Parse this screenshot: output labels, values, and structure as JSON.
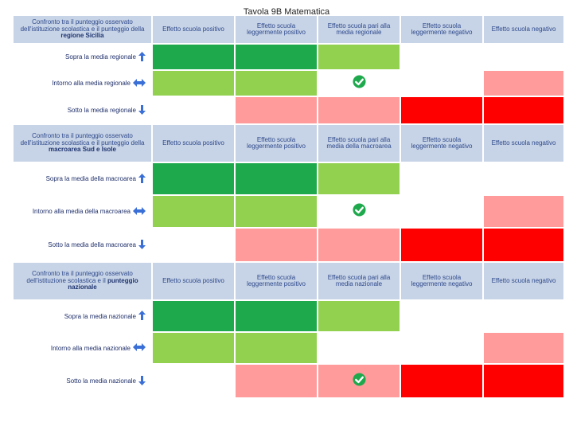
{
  "title": "Tavola 9B Matematica",
  "col_headers": [
    "Effetto scuola positivo",
    "Effetto scuola leggermente positivo",
    "Effetto scuola pari alla media",
    "Effetto scuola leggermente negativo",
    "Effetto scuola negativo"
  ],
  "col_headers_region": [
    "Effetto scuola positivo",
    "Effetto scuola leggermente positivo",
    "Effetto scuola pari alla media regionale",
    "Effetto scuola leggermente negativo",
    "Effetto scuola negativo"
  ],
  "col_headers_macro": [
    "Effetto scuola positivo",
    "Effetto scuola leggermente positivo",
    "Effetto scuola pari alla media della macroarea",
    "Effetto scuola leggermente negativo",
    "Effetto scuola negativo"
  ],
  "col_headers_nat": [
    "Effetto scuola positivo",
    "Effetto scuola leggermente positivo",
    "Effetto scuola pari alla media nazionale",
    "Effetto scuola leggermente negativo",
    "Effetto scuola negativo"
  ],
  "sections": [
    {
      "header_pre": "Confronto tra il punteggio osservato dell'istituzione scolastica e il punteggio della ",
      "header_bold": "regione Sicilia",
      "rows": [
        {
          "label": "Sopra la media regionale",
          "icon": "arrow-up-icon",
          "cells": [
            "dg",
            "dg",
            "lg",
            "wh",
            "wh"
          ],
          "check": -1
        },
        {
          "label": "Intorno alla media regionale",
          "icon": "arrow-left-right-icon",
          "cells": [
            "lg",
            "lg",
            "wh",
            "wh",
            "pk"
          ],
          "check": 2
        },
        {
          "label": "Sotto la media regionale",
          "icon": "arrow-down-icon",
          "cells": [
            "wh",
            "pk",
            "pk",
            "rd",
            "rd"
          ],
          "check": -1
        }
      ]
    },
    {
      "header_pre": "Confronto tra il punteggio osservato dell'istituzione scolastica e il punteggio della ",
      "header_bold": "macroarea Sud e Isole",
      "rows": [
        {
          "label": "Sopra la media della macroarea",
          "icon": "arrow-up-icon",
          "cells": [
            "dg",
            "dg",
            "lg",
            "wh",
            "wh"
          ],
          "check": -1
        },
        {
          "label": "Intorno alla media della macroarea",
          "icon": "arrow-left-right-icon",
          "cells": [
            "lg",
            "lg",
            "wh",
            "wh",
            "pk"
          ],
          "check": 2
        },
        {
          "label": "Sotto la media della macroarea",
          "icon": "arrow-down-icon",
          "cells": [
            "wh",
            "pk",
            "pk",
            "rd",
            "rd"
          ],
          "check": -1
        }
      ]
    },
    {
      "header_pre": "Confronto tra il punteggio osservato dell'istituzione scolastica e il ",
      "header_bold": "punteggio nazionale",
      "rows": [
        {
          "label": "Sopra la media nazionale",
          "icon": "arrow-up-icon",
          "cells": [
            "dg",
            "dg",
            "lg",
            "wh",
            "wh"
          ],
          "check": -1
        },
        {
          "label": "Intorno alla media nazionale",
          "icon": "arrow-left-right-icon",
          "cells": [
            "lg",
            "lg",
            "wh",
            "wh",
            "pk"
          ],
          "check": -1
        },
        {
          "label": "Sotto la media nazionale",
          "icon": "arrow-down-icon",
          "cells": [
            "wh",
            "pk",
            "pk",
            "rd",
            "rd"
          ],
          "check": 2
        }
      ]
    }
  ],
  "colors": {
    "header_bg": "#c7d3e6",
    "dark_green": "#1ea94c",
    "light_green": "#92d050",
    "light_red": "#ff9b9b",
    "red": "#ff0000",
    "arrow_blue": "#3a6fd8",
    "check_green": "#1ea94c"
  }
}
